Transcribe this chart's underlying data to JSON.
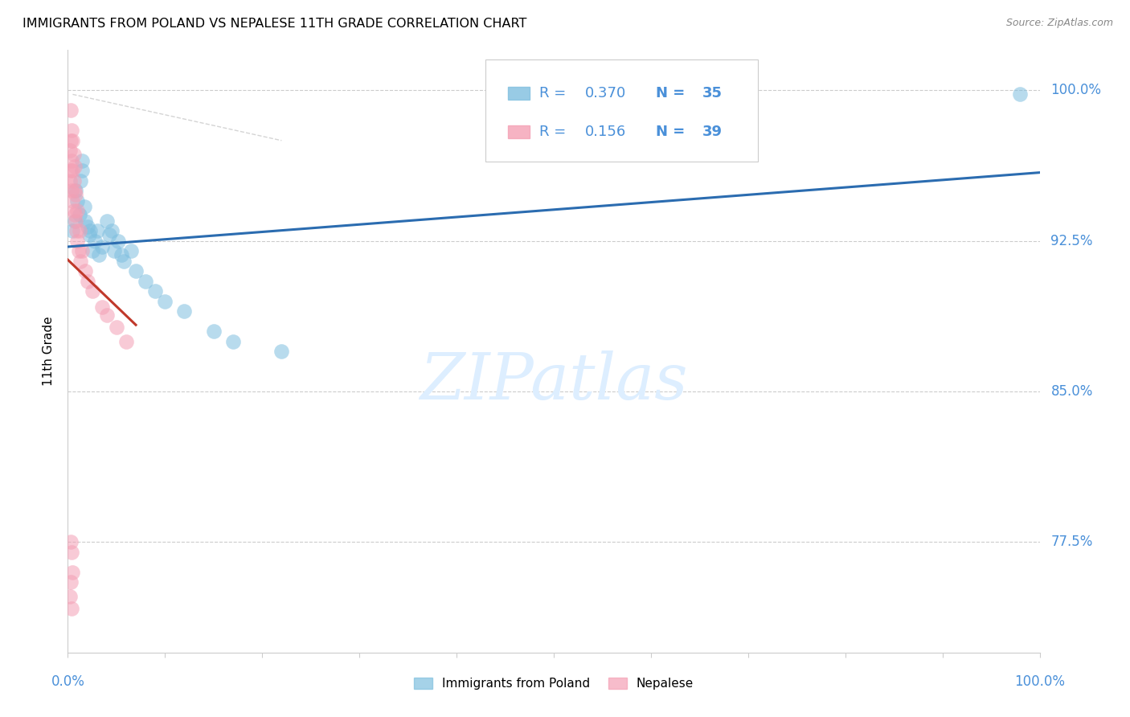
{
  "title": "IMMIGRANTS FROM POLAND VS NEPALESE 11TH GRADE CORRELATION CHART",
  "source": "Source: ZipAtlas.com",
  "ylabel": "11th Grade",
  "xlim": [
    0.0,
    1.0
  ],
  "ylim": [
    0.72,
    1.02
  ],
  "ytick_vals": [
    0.775,
    0.85,
    0.925,
    1.0
  ],
  "ytick_labels": [
    "77.5%",
    "85.0%",
    "92.5%",
    "100.0%"
  ],
  "legend_r1": "0.370",
  "legend_n1": "35",
  "legend_r2": "0.156",
  "legend_n2": "39",
  "blue_scatter_color": "#7fbfdf",
  "pink_scatter_color": "#f4a0b5",
  "blue_line_color": "#2b6cb0",
  "pink_line_color": "#c0392b",
  "gray_dash_color": "#d0d0d0",
  "axis_label_color": "#4a90d9",
  "watermark_color": "#ddeeff",
  "poland_x": [
    0.005,
    0.007,
    0.008,
    0.01,
    0.012,
    0.013,
    0.015,
    0.015,
    0.017,
    0.018,
    0.02,
    0.022,
    0.023,
    0.025,
    0.028,
    0.03,
    0.032,
    0.035,
    0.04,
    0.043,
    0.045,
    0.048,
    0.052,
    0.055,
    0.058,
    0.065,
    0.07,
    0.08,
    0.09,
    0.1,
    0.12,
    0.15,
    0.17,
    0.22,
    0.98
  ],
  "poland_y": [
    0.93,
    0.935,
    0.95,
    0.945,
    0.938,
    0.955,
    0.965,
    0.96,
    0.942,
    0.935,
    0.932,
    0.928,
    0.93,
    0.92,
    0.925,
    0.93,
    0.918,
    0.922,
    0.935,
    0.928,
    0.93,
    0.92,
    0.925,
    0.918,
    0.915,
    0.92,
    0.91,
    0.905,
    0.9,
    0.895,
    0.89,
    0.88,
    0.875,
    0.87,
    0.998
  ],
  "nepal_x": [
    0.002,
    0.002,
    0.003,
    0.003,
    0.003,
    0.004,
    0.004,
    0.004,
    0.005,
    0.005,
    0.005,
    0.006,
    0.006,
    0.006,
    0.007,
    0.007,
    0.007,
    0.008,
    0.008,
    0.009,
    0.01,
    0.01,
    0.011,
    0.012,
    0.013,
    0.015,
    0.018,
    0.02,
    0.025,
    0.035,
    0.04,
    0.05,
    0.06,
    0.003,
    0.004,
    0.005,
    0.003,
    0.002,
    0.004
  ],
  "nepal_y": [
    0.955,
    0.97,
    0.96,
    0.975,
    0.99,
    0.95,
    0.965,
    0.98,
    0.945,
    0.96,
    0.975,
    0.94,
    0.955,
    0.968,
    0.938,
    0.95,
    0.962,
    0.935,
    0.948,
    0.93,
    0.925,
    0.94,
    0.92,
    0.93,
    0.915,
    0.92,
    0.91,
    0.905,
    0.9,
    0.892,
    0.888,
    0.882,
    0.875,
    0.775,
    0.77,
    0.76,
    0.755,
    0.748,
    0.742
  ]
}
